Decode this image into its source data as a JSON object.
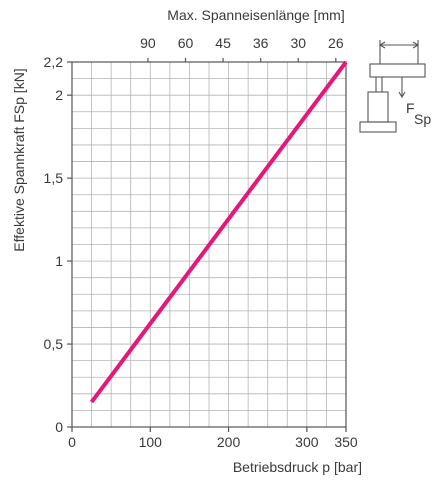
{
  "chart_data": {
    "type": "line",
    "xlabel": "Betriebsdruck p [bar]",
    "ylabel": "Effektive Spannkraft FSp [kN]",
    "top_axis_label": "Max. Spanneisenlänge [mm]",
    "xlim": [
      0,
      350
    ],
    "ylim": [
      0,
      2.2
    ],
    "x_ticks": [
      {
        "value": 0,
        "label": "0"
      },
      {
        "value": 100,
        "label": "100"
      },
      {
        "value": 200,
        "label": "200"
      },
      {
        "value": 300,
        "label": "300"
      },
      {
        "value": 350,
        "label": "350"
      }
    ],
    "y_ticks": [
      {
        "value": 0,
        "label": "0"
      },
      {
        "value": 0.5,
        "label": "0,5"
      },
      {
        "value": 1,
        "label": "1"
      },
      {
        "value": 1.5,
        "label": "1,5"
      },
      {
        "value": 2,
        "label": "2"
      },
      {
        "value": 2.2,
        "label": "2,2"
      }
    ],
    "top_ticks": [
      {
        "x": 97,
        "label": "90"
      },
      {
        "x": 145,
        "label": "60"
      },
      {
        "x": 193,
        "label": "45"
      },
      {
        "x": 241,
        "label": "36"
      },
      {
        "x": 289,
        "label": "30"
      },
      {
        "x": 337,
        "label": "26"
      }
    ],
    "grid": true,
    "series": [
      {
        "color": "#e5177b",
        "x": [
          25,
          350
        ],
        "y": [
          0.15,
          2.2
        ]
      }
    ]
  },
  "icon": {
    "name": "clamp-diagram-icon",
    "force_label_main": "F",
    "force_label_sub": "Sp"
  }
}
